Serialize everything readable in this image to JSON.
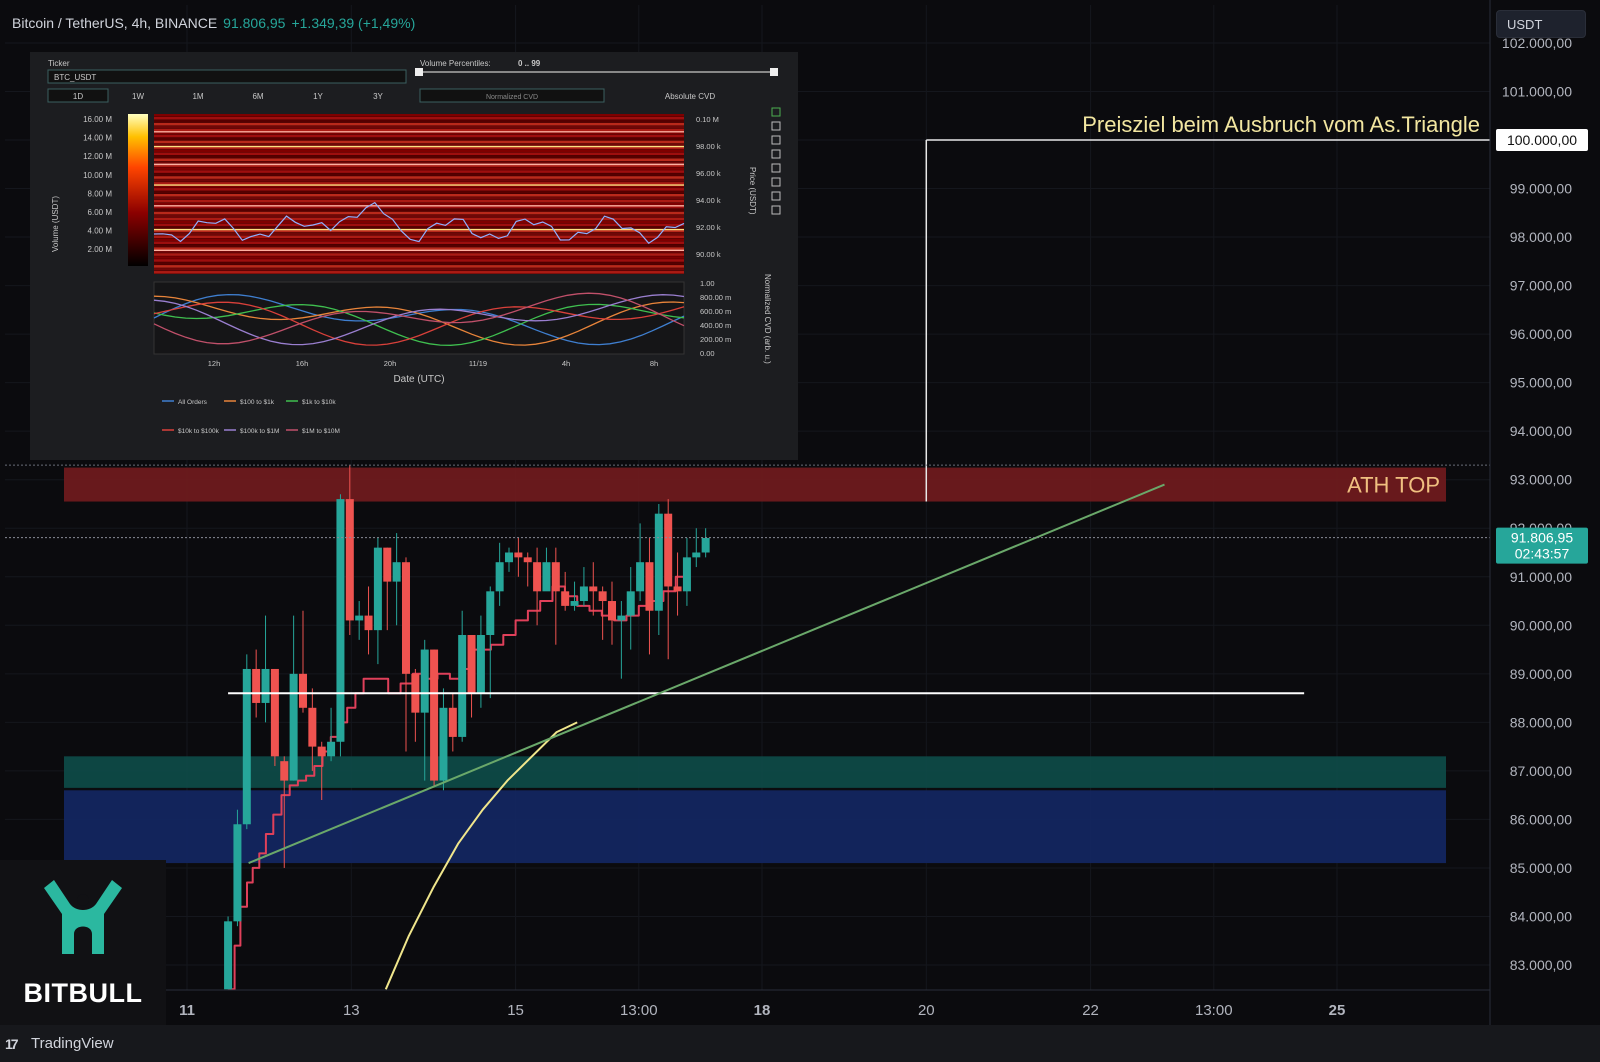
{
  "header": {
    "symbol": "Bitcoin / TetherUS, 4h, BINANCE",
    "price": "91.806,95",
    "change": "+1.349,39 (+1,49%)"
  },
  "currency_button": "USDT",
  "logo": {
    "name": "BITBULL"
  },
  "footer": {
    "brand": "TradingView",
    "brand_icon": "17"
  },
  "colors": {
    "background": "#0b0b0e",
    "up": "#26a69a",
    "down": "#ef5350",
    "ath_zone": "#6e1a1e",
    "teal_zone": "#0e4a47",
    "blue_zone": "#132660",
    "ma_yellow": "#f0e68c",
    "trendline": "#6aa86a",
    "stepline": "#e0405a",
    "logo_green": "#2bb8a0"
  },
  "chart_data": {
    "type": "candlestick",
    "ylim": [
      82500,
      102200
    ],
    "y_ticks": [
      "83.000,00",
      "84.000,00",
      "85.000,00",
      "86.000,00",
      "87.000,00",
      "88.000,00",
      "89.000,00",
      "90.000,00",
      "91.000,00",
      "92.000,00",
      "93.000,00",
      "94.000,00",
      "95.000,00",
      "96.000,00",
      "97.000,00",
      "98.000,00",
      "99.000,00",
      "100.000,00",
      "101.000,00",
      "102.000,00"
    ],
    "x_ticks": [
      {
        "label": "11",
        "bold": true,
        "day": 11.0
      },
      {
        "label": "13",
        "bold": false,
        "day": 13.0
      },
      {
        "label": "15",
        "bold": false,
        "day": 15.0
      },
      {
        "label": "13:00",
        "bold": false,
        "day": 16.5
      },
      {
        "label": "18",
        "bold": true,
        "day": 18.0
      },
      {
        "label": "20",
        "bold": false,
        "day": 20.0
      },
      {
        "label": "22",
        "bold": false,
        "day": 22.0
      },
      {
        "label": "13:00",
        "bold": false,
        "day": 23.5
      },
      {
        "label": "25",
        "bold": true,
        "day": 25.0
      }
    ],
    "candles": [
      [
        82500,
        83900,
        82500,
        84000
      ],
      [
        83900,
        85900,
        83800,
        86200
      ],
      [
        85900,
        89100,
        85800,
        89400
      ],
      [
        89100,
        88400,
        88100,
        89500
      ],
      [
        88400,
        89100,
        88000,
        90200
      ],
      [
        89100,
        87300,
        87100,
        89100
      ],
      [
        87200,
        86800,
        85000,
        87300
      ],
      [
        86800,
        89000,
        86800,
        90200
      ],
      [
        89000,
        88300,
        88200,
        90300
      ],
      [
        88300,
        87500,
        87000,
        88700
      ],
      [
        87500,
        87300,
        86400,
        87600
      ],
      [
        87300,
        87600,
        87200,
        88300
      ],
      [
        87600,
        92600,
        87300,
        92700
      ],
      [
        92600,
        90100,
        89800,
        93300
      ],
      [
        90100,
        90200,
        89700,
        90500
      ],
      [
        90200,
        89900,
        89400,
        90800
      ],
      [
        89900,
        91600,
        89200,
        91800
      ],
      [
        91600,
        90900,
        89900,
        91600
      ],
      [
        90900,
        91300,
        90000,
        91900
      ],
      [
        91300,
        89000,
        87400,
        91400
      ],
      [
        89000,
        88200,
        87600,
        89100
      ],
      [
        88200,
        89500,
        86800,
        89700
      ],
      [
        89500,
        86800,
        86700,
        89500
      ],
      [
        86800,
        88300,
        86600,
        88700
      ],
      [
        88300,
        87700,
        87400,
        88600
      ],
      [
        87700,
        89800,
        87600,
        90300
      ],
      [
        89800,
        88600,
        88100,
        89800
      ],
      [
        88600,
        89800,
        88300,
        90200
      ],
      [
        89800,
        90700,
        88500,
        90800
      ],
      [
        90700,
        91300,
        90400,
        91700
      ],
      [
        91300,
        91500,
        91100,
        91600
      ],
      [
        91500,
        91400,
        91000,
        91800
      ],
      [
        91400,
        91300,
        90800,
        91500
      ],
      [
        91300,
        90700,
        90000,
        91600
      ],
      [
        90700,
        91300,
        90800,
        91600
      ],
      [
        91300,
        90700,
        89600,
        91600
      ],
      [
        90700,
        90400,
        90300,
        91100
      ],
      [
        90400,
        90500,
        90300,
        90900
      ],
      [
        90500,
        90800,
        90400,
        91200
      ],
      [
        90800,
        90700,
        90200,
        91300
      ],
      [
        90700,
        90500,
        89700,
        90800
      ],
      [
        90500,
        90100,
        89600,
        90900
      ],
      [
        90100,
        90200,
        88900,
        90500
      ],
      [
        90200,
        90700,
        89500,
        91200
      ],
      [
        90700,
        91300,
        90500,
        92100
      ],
      [
        91300,
        90300,
        89400,
        91800
      ],
      [
        90300,
        92300,
        89800,
        92500
      ],
      [
        92300,
        90800,
        89300,
        92600
      ],
      [
        90800,
        90700,
        90200,
        91500
      ],
      [
        90700,
        91400,
        90400,
        91800
      ],
      [
        91400,
        91500,
        91200,
        92000
      ],
      [
        91500,
        91800,
        91400,
        92000
      ]
    ],
    "step_line": [
      [
        11.5,
        82500
      ],
      [
        11.58,
        83400
      ],
      [
        11.65,
        84200
      ],
      [
        11.73,
        84700
      ],
      [
        11.8,
        85000
      ],
      [
        11.88,
        85300
      ],
      [
        11.96,
        85700
      ],
      [
        12.05,
        86100
      ],
      [
        12.15,
        86500
      ],
      [
        12.25,
        86700
      ],
      [
        12.35,
        86800
      ],
      [
        12.45,
        86900
      ],
      [
        12.55,
        87100
      ],
      [
        12.65,
        87400
      ],
      [
        12.75,
        87700
      ],
      [
        12.85,
        88000
      ],
      [
        12.95,
        88300
      ],
      [
        13.05,
        88600
      ],
      [
        13.15,
        88900
      ],
      [
        13.3,
        88900
      ],
      [
        13.45,
        88600
      ],
      [
        13.6,
        88800
      ],
      [
        13.75,
        89000
      ],
      [
        13.9,
        88900
      ],
      [
        14.05,
        89000
      ],
      [
        14.2,
        88900
      ],
      [
        14.35,
        89100
      ],
      [
        14.5,
        89500
      ],
      [
        14.7,
        89600
      ],
      [
        14.85,
        89800
      ],
      [
        15.0,
        90100
      ],
      [
        15.15,
        90300
      ],
      [
        15.3,
        90500
      ],
      [
        15.45,
        90800
      ],
      [
        15.6,
        90600
      ],
      [
        15.75,
        90400
      ],
      [
        15.9,
        90300
      ],
      [
        16.05,
        90200
      ],
      [
        16.2,
        90100
      ],
      [
        16.35,
        90200
      ],
      [
        16.5,
        90400
      ],
      [
        16.65,
        90500
      ],
      [
        16.8,
        90700
      ],
      [
        16.95,
        91000
      ],
      [
        17.05,
        91000
      ]
    ],
    "ma_line": [
      [
        13.42,
        82500
      ],
      [
        13.7,
        83600
      ],
      [
        14.0,
        84600
      ],
      [
        14.3,
        85500
      ],
      [
        14.6,
        86200
      ],
      [
        14.9,
        86800
      ],
      [
        15.2,
        87300
      ],
      [
        15.5,
        87800
      ],
      [
        15.75,
        88000
      ]
    ],
    "trend_line": [
      [
        11.75,
        85100
      ],
      [
        22.9,
        92900
      ]
    ],
    "support_line": {
      "y": 88600,
      "from": 11.5,
      "to": 24.6
    },
    "target_line": {
      "y": 100000,
      "x": 20.0,
      "to": 25.2
    },
    "zones": [
      {
        "name": "ATH TOP",
        "y0": 92550,
        "y1": 93250,
        "color": "#6e1a1e"
      },
      {
        "name": "teal",
        "y0": 86650,
        "y1": 87300,
        "color": "#0e4a47"
      },
      {
        "name": "blue",
        "y0": 85100,
        "y1": 86600,
        "color": "#132660"
      }
    ],
    "last_price": {
      "value": 91806.95,
      "label": "91.806,95",
      "countdown": "02:43:57"
    },
    "target_price_label": "100.000,00",
    "annotations": {
      "target_text": "Preisziel beim Ausbruch vom As.Triangle",
      "ath_text": "ATH TOP"
    }
  },
  "inset": {
    "ticker_label": "Ticker",
    "ticker_value": "BTC_USDT",
    "percentiles_label": "Volume Percentiles:",
    "percentiles_value": "0 .. 99",
    "periods": [
      "1D",
      "1W",
      "1M",
      "6M",
      "1Y",
      "3Y"
    ],
    "modes": [
      "Normalized CVD",
      "Absolute CVD"
    ],
    "colorbar_ticks": [
      "16.00 M",
      "14.00 M",
      "12.00 M",
      "10.00 M",
      "8.00 M",
      "6.00 M",
      "4.00 M",
      "2.00 M"
    ],
    "colorbar_label": "Volume (USDT)",
    "price_ticks": [
      "0.10 M",
      "98.00 k",
      "96.00 k",
      "94.00 k",
      "92.00 k",
      "90.00 k"
    ],
    "price_label": "Price (USDT)",
    "cvd_ticks": [
      "1.00",
      "800.00 m",
      "600.00 m",
      "400.00 m",
      "200.00 m",
      "0.00"
    ],
    "cvd_label": "Normalized CVD (arb. u.)",
    "x_ticks": [
      "12h",
      "16h",
      "20h",
      "11/19",
      "4h",
      "8h"
    ],
    "x_label": "Date (UTC)",
    "legend": [
      {
        "label": "All Orders",
        "color": "#3f7fd0"
      },
      {
        "label": "$100 to $1k",
        "color": "#e8843a"
      },
      {
        "label": "$1k to $10k",
        "color": "#3fbf4f"
      },
      {
        "label": "$10k to $100k",
        "color": "#d9403a"
      },
      {
        "label": "$100k to $1M",
        "color": "#9a7fd0"
      },
      {
        "label": "$1M to $10M",
        "color": "#c0506a"
      }
    ]
  }
}
